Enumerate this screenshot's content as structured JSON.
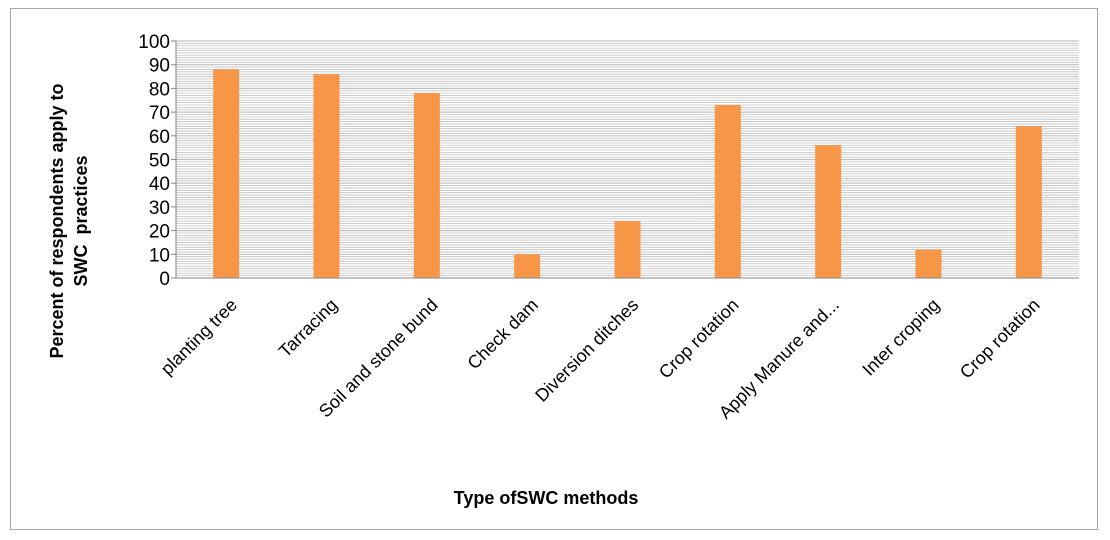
{
  "chart_data": {
    "type": "bar",
    "title": "",
    "xlabel": "Type ofSWC methods",
    "ylabel_lines": [
      "Percent of respondents apply to",
      "SWC  practices"
    ],
    "categories": [
      "planting tree",
      "Tarracing",
      "Soil and stone bund",
      "Check dam",
      "Diversion ditches",
      "Crop rotation",
      "Apply Manure and...",
      "Inter croping",
      "Crop rotation"
    ],
    "values": [
      88,
      86,
      78,
      10,
      24,
      73,
      56,
      12,
      64
    ],
    "ylim": [
      0,
      100
    ],
    "y_ticks": [
      "0",
      "10",
      "20",
      "30",
      "40",
      "50",
      "60",
      "70",
      "80",
      "90",
      "100"
    ],
    "grid": true,
    "legend": "none",
    "colors": {
      "bar": "#F79646",
      "grid": "#bfbfbf",
      "axis": "#868686"
    }
  }
}
